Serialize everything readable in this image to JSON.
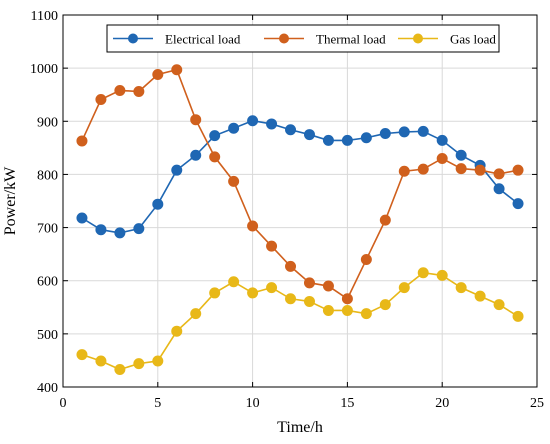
{
  "chart_data": {
    "type": "line",
    "xlabel": "Time/h",
    "ylabel": "Power/kW",
    "xlim": [
      0,
      25
    ],
    "ylim": [
      400,
      1100
    ],
    "xticks": [
      0,
      5,
      10,
      15,
      20,
      25
    ],
    "yticks": [
      400,
      500,
      600,
      700,
      800,
      900,
      1000,
      1100
    ],
    "grid": true,
    "legend_position": "top",
    "x": [
      1,
      2,
      3,
      4,
      5,
      6,
      7,
      8,
      9,
      10,
      11,
      12,
      13,
      14,
      15,
      16,
      17,
      18,
      19,
      20,
      21,
      22,
      23,
      24
    ],
    "series": [
      {
        "name": "Electrical load",
        "color": "#1f67b3",
        "values": [
          718,
          696,
          690,
          698,
          744,
          808,
          836,
          873,
          887,
          901,
          895,
          884,
          875,
          864,
          864,
          869,
          877,
          880,
          881,
          864,
          836,
          817,
          773,
          745
        ]
      },
      {
        "name": "Thermal load",
        "color": "#d0601d",
        "values": [
          863,
          941,
          958,
          956,
          988,
          997,
          903,
          833,
          787,
          703,
          665,
          627,
          596,
          590,
          566,
          640,
          714,
          806,
          810,
          830,
          811,
          808,
          801,
          808
        ]
      },
      {
        "name": "Gas load",
        "color": "#e8b818",
        "values": [
          461,
          449,
          433,
          444,
          449,
          505,
          538,
          577,
          598,
          577,
          587,
          566,
          561,
          544,
          544,
          538,
          555,
          587,
          615,
          610,
          587,
          571,
          555,
          533
        ]
      }
    ]
  }
}
